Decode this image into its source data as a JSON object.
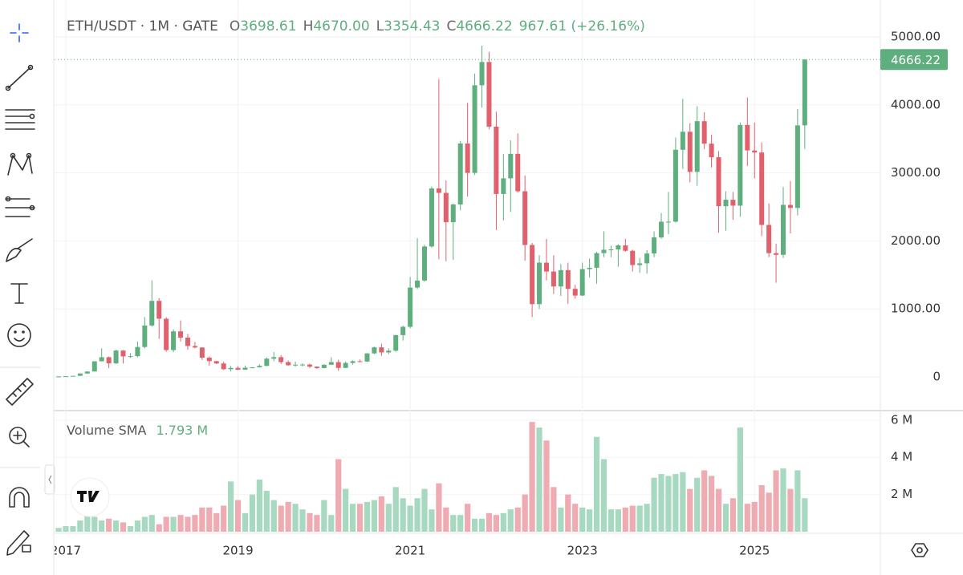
{
  "chart_data": {
    "type": "candlestick",
    "title": "ETH/USDT · 1M · GATE",
    "ohlc_legend": [
      {
        "label": "O",
        "value": "3698.61"
      },
      {
        "label": "H",
        "value": "4670.00"
      },
      {
        "label": "L",
        "value": "3354.43"
      },
      {
        "label": "C",
        "value": "4666.22"
      }
    ],
    "change": "967.61 (+26.16%)",
    "volume_legend": {
      "label": "Volume SMA",
      "value": "1.793 M"
    },
    "up_color": "#5fae7e",
    "down_color": "#e0616c",
    "volume_up_color": "#a6d9bf",
    "volume_down_color": "#eeabb2",
    "grid": true,
    "categories": [
      null,
      "2017",
      null,
      null,
      null,
      null,
      null,
      null,
      null,
      null,
      null,
      null,
      null,
      null,
      null,
      null,
      null,
      null,
      null,
      null,
      null,
      null,
      null,
      null,
      null,
      "2019",
      null,
      null,
      null,
      null,
      null,
      null,
      null,
      null,
      null,
      null,
      null,
      null,
      null,
      null,
      null,
      null,
      null,
      null,
      null,
      null,
      null,
      null,
      null,
      "2021",
      null,
      null,
      null,
      null,
      null,
      null,
      null,
      null,
      null,
      null,
      null,
      null,
      null,
      null,
      null,
      null,
      null,
      null,
      null,
      null,
      null,
      null,
      null,
      "2023",
      null,
      null,
      null,
      null,
      null,
      null,
      null,
      null,
      null,
      null,
      null,
      null,
      null,
      null,
      null,
      null,
      null,
      null,
      null,
      null,
      null,
      null,
      null,
      "2025",
      null,
      null,
      null,
      null,
      null,
      null,
      null
    ],
    "open": [
      8,
      8,
      10.7,
      16,
      50,
      80,
      230,
      290,
      200,
      388,
      302,
      305,
      440,
      756,
      1118,
      856,
      395,
      670,
      578,
      455,
      433,
      283,
      232,
      198,
      114,
      133,
      107,
      136,
      141,
      162,
      268,
      291,
      218,
      172,
      180,
      182,
      151,
      130,
      179,
      218,
      133,
      206,
      231,
      226,
      346,
      435,
      360,
      386,
      615,
      737,
      1314,
      1417,
      1918,
      2772,
      2706,
      2275,
      2536,
      3433,
      3000,
      4288,
      4630,
      3680,
      2690,
      2920,
      3280,
      2730,
      1940,
      1070,
      1680,
      1550,
      1330,
      1570,
      1295,
      1196,
      1585,
      1605,
      1820,
      1870,
      1875,
      1935,
      1855,
      1645,
      1670,
      1815,
      2052,
      2282,
      2283,
      3340,
      3605,
      3015,
      3760,
      3430,
      3230,
      2510,
      2605,
      2518,
      3705,
      3330,
      3300,
      2235,
      1820,
      1795,
      2530,
      2485,
      3698.61
    ],
    "high": [
      9,
      11,
      16,
      55,
      80,
      230,
      420,
      300,
      400,
      395,
      350,
      520,
      880,
      1420,
      1160,
      880,
      700,
      830,
      630,
      515,
      434,
      300,
      235,
      225,
      160,
      160,
      165,
      145,
      185,
      285,
      365,
      320,
      240,
      225,
      200,
      195,
      155,
      185,
      290,
      253,
      227,
      245,
      255,
      350,
      445,
      488,
      420,
      620,
      755,
      1470,
      2040,
      1945,
      2800,
      4380,
      2890,
      2550,
      3470,
      4030,
      4460,
      4870,
      4780,
      3900,
      3280,
      3480,
      3580,
      2960,
      1970,
      1790,
      2030,
      1790,
      1660,
      1680,
      1355,
      1680,
      1740,
      1840,
      2140,
      1930,
      1950,
      2030,
      1870,
      1750,
      1865,
      2140,
      2410,
      2720,
      3520,
      4090,
      3730,
      3980,
      3890,
      3560,
      3320,
      2730,
      2720,
      3740,
      4110,
      3740,
      3450,
      2550,
      1960,
      2790,
      2880,
      3940,
      4670
    ],
    "low": [
      7,
      8,
      10.5,
      15,
      43,
      80,
      230,
      130,
      190,
      200,
      280,
      290,
      420,
      740,
      560,
      370,
      365,
      520,
      400,
      420,
      250,
      167,
      190,
      100,
      82,
      100,
      103,
      125,
      140,
      160,
      230,
      190,
      165,
      150,
      155,
      130,
      117,
      127,
      175,
      90,
      130,
      180,
      215,
      220,
      335,
      310,
      335,
      370,
      535,
      715,
      1290,
      1400,
      1900,
      1730,
      1700,
      1720,
      2450,
      2650,
      2970,
      3960,
      3640,
      2160,
      2300,
      2425,
      2710,
      1710,
      880,
      1000,
      1420,
      1220,
      1190,
      1075,
      1150,
      1190,
      1460,
      1370,
      1760,
      1760,
      1620,
      1840,
      1550,
      1530,
      1520,
      1760,
      2030,
      2100,
      2270,
      3060,
      2860,
      2810,
      3350,
      3080,
      2120,
      2150,
      2310,
      2355,
      3100,
      2920,
      2070,
      1760,
      1385,
      1750,
      2110,
      2375,
      3354.43
    ],
    "close": [
      8,
      10.7,
      16,
      50,
      80,
      230,
      290,
      200,
      388,
      302,
      305,
      440,
      756,
      1118,
      856,
      395,
      670,
      578,
      455,
      433,
      283,
      232,
      198,
      114,
      133,
      107,
      136,
      141,
      162,
      268,
      291,
      218,
      172,
      180,
      182,
      151,
      130,
      179,
      218,
      133,
      206,
      231,
      226,
      346,
      435,
      360,
      386,
      615,
      737,
      1314,
      1417,
      1918,
      2772,
      2706,
      2275,
      2536,
      3433,
      3000,
      4288,
      4630,
      3680,
      2690,
      2920,
      3280,
      2730,
      1940,
      1070,
      1680,
      1550,
      1330,
      1570,
      1295,
      1196,
      1585,
      1605,
      1820,
      1870,
      1875,
      1935,
      1855,
      1645,
      1670,
      1815,
      2052,
      2282,
      2283,
      3340,
      3605,
      3015,
      3760,
      3430,
      3230,
      2510,
      2605,
      2518,
      3705,
      3330,
      3300,
      2235,
      1820,
      1795,
      2530,
      2485,
      3698.61,
      4666.22
    ],
    "volume": [
      200000,
      300000,
      300000,
      600000,
      900000,
      800000,
      600000,
      700000,
      600000,
      500000,
      300000,
      600000,
      800000,
      900000,
      400000,
      800000,
      800000,
      900000,
      800000,
      900000,
      1300000,
      1300000,
      1000000,
      1400000,
      2700000,
      1700000,
      1000000,
      2000000,
      2800000,
      2200000,
      1700000,
      1400000,
      1600000,
      1500000,
      1200000,
      1000000,
      900000,
      1700000,
      900000,
      3900000,
      2300000,
      1500000,
      1500000,
      1600000,
      1700000,
      1900000,
      1500000,
      2400000,
      1800000,
      1400000,
      1800000,
      2300000,
      1200000,
      2600000,
      1300000,
      900000,
      900000,
      1500000,
      700000,
      700000,
      1000000,
      900000,
      1000000,
      1200000,
      1300000,
      2000000,
      5900000,
      5600000,
      4900000,
      2400000,
      1300000,
      2000000,
      1500000,
      1300000,
      1200000,
      5100000,
      3900000,
      1200000,
      1200000,
      1300000,
      1400000,
      1400000,
      1500000,
      2900000,
      3100000,
      3000000,
      3100000,
      3200000,
      2300000,
      2900000,
      3300000,
      3000000,
      2300000,
      1500000,
      1800000,
      5600000,
      1500000,
      1600000,
      2500000,
      2100000,
      3300000,
      3400000,
      2300000,
      3300000,
      1800000
    ],
    "ylim": [
      -495,
      5542
    ],
    "yticks": [
      0,
      {
        "value": 1000,
        "label": "1000.00"
      },
      {
        "value": 2000,
        "label": "2000.00"
      },
      {
        "value": 3000,
        "label": "3000.00"
      },
      {
        "value": 4000,
        "label": "4000.00"
      },
      {
        "value": 5000,
        "label": "5000.00"
      }
    ],
    "volume_ylim": [
      0,
      6510000
    ],
    "volume_yticks": [
      {
        "value": 2000000,
        "label": "2 M"
      },
      {
        "value": 4000000,
        "label": "4 M"
      },
      {
        "value": 6000000,
        "label": "6 M"
      }
    ]
  }
}
